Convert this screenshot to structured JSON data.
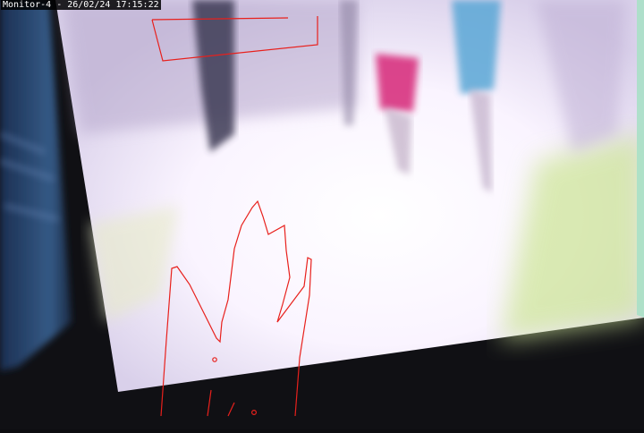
{
  "overlay": {
    "camera_label": "Monitor-4",
    "separator": " - ",
    "date": "26/02/24",
    "time": "17:15:22"
  },
  "colors": {
    "annotation": "#e8201c",
    "screen_glow": "#fbf6ff",
    "screen_edge_green": "#c9e88a",
    "frame_dark": "#101014",
    "monitor_left_blue": "#2c4670"
  }
}
